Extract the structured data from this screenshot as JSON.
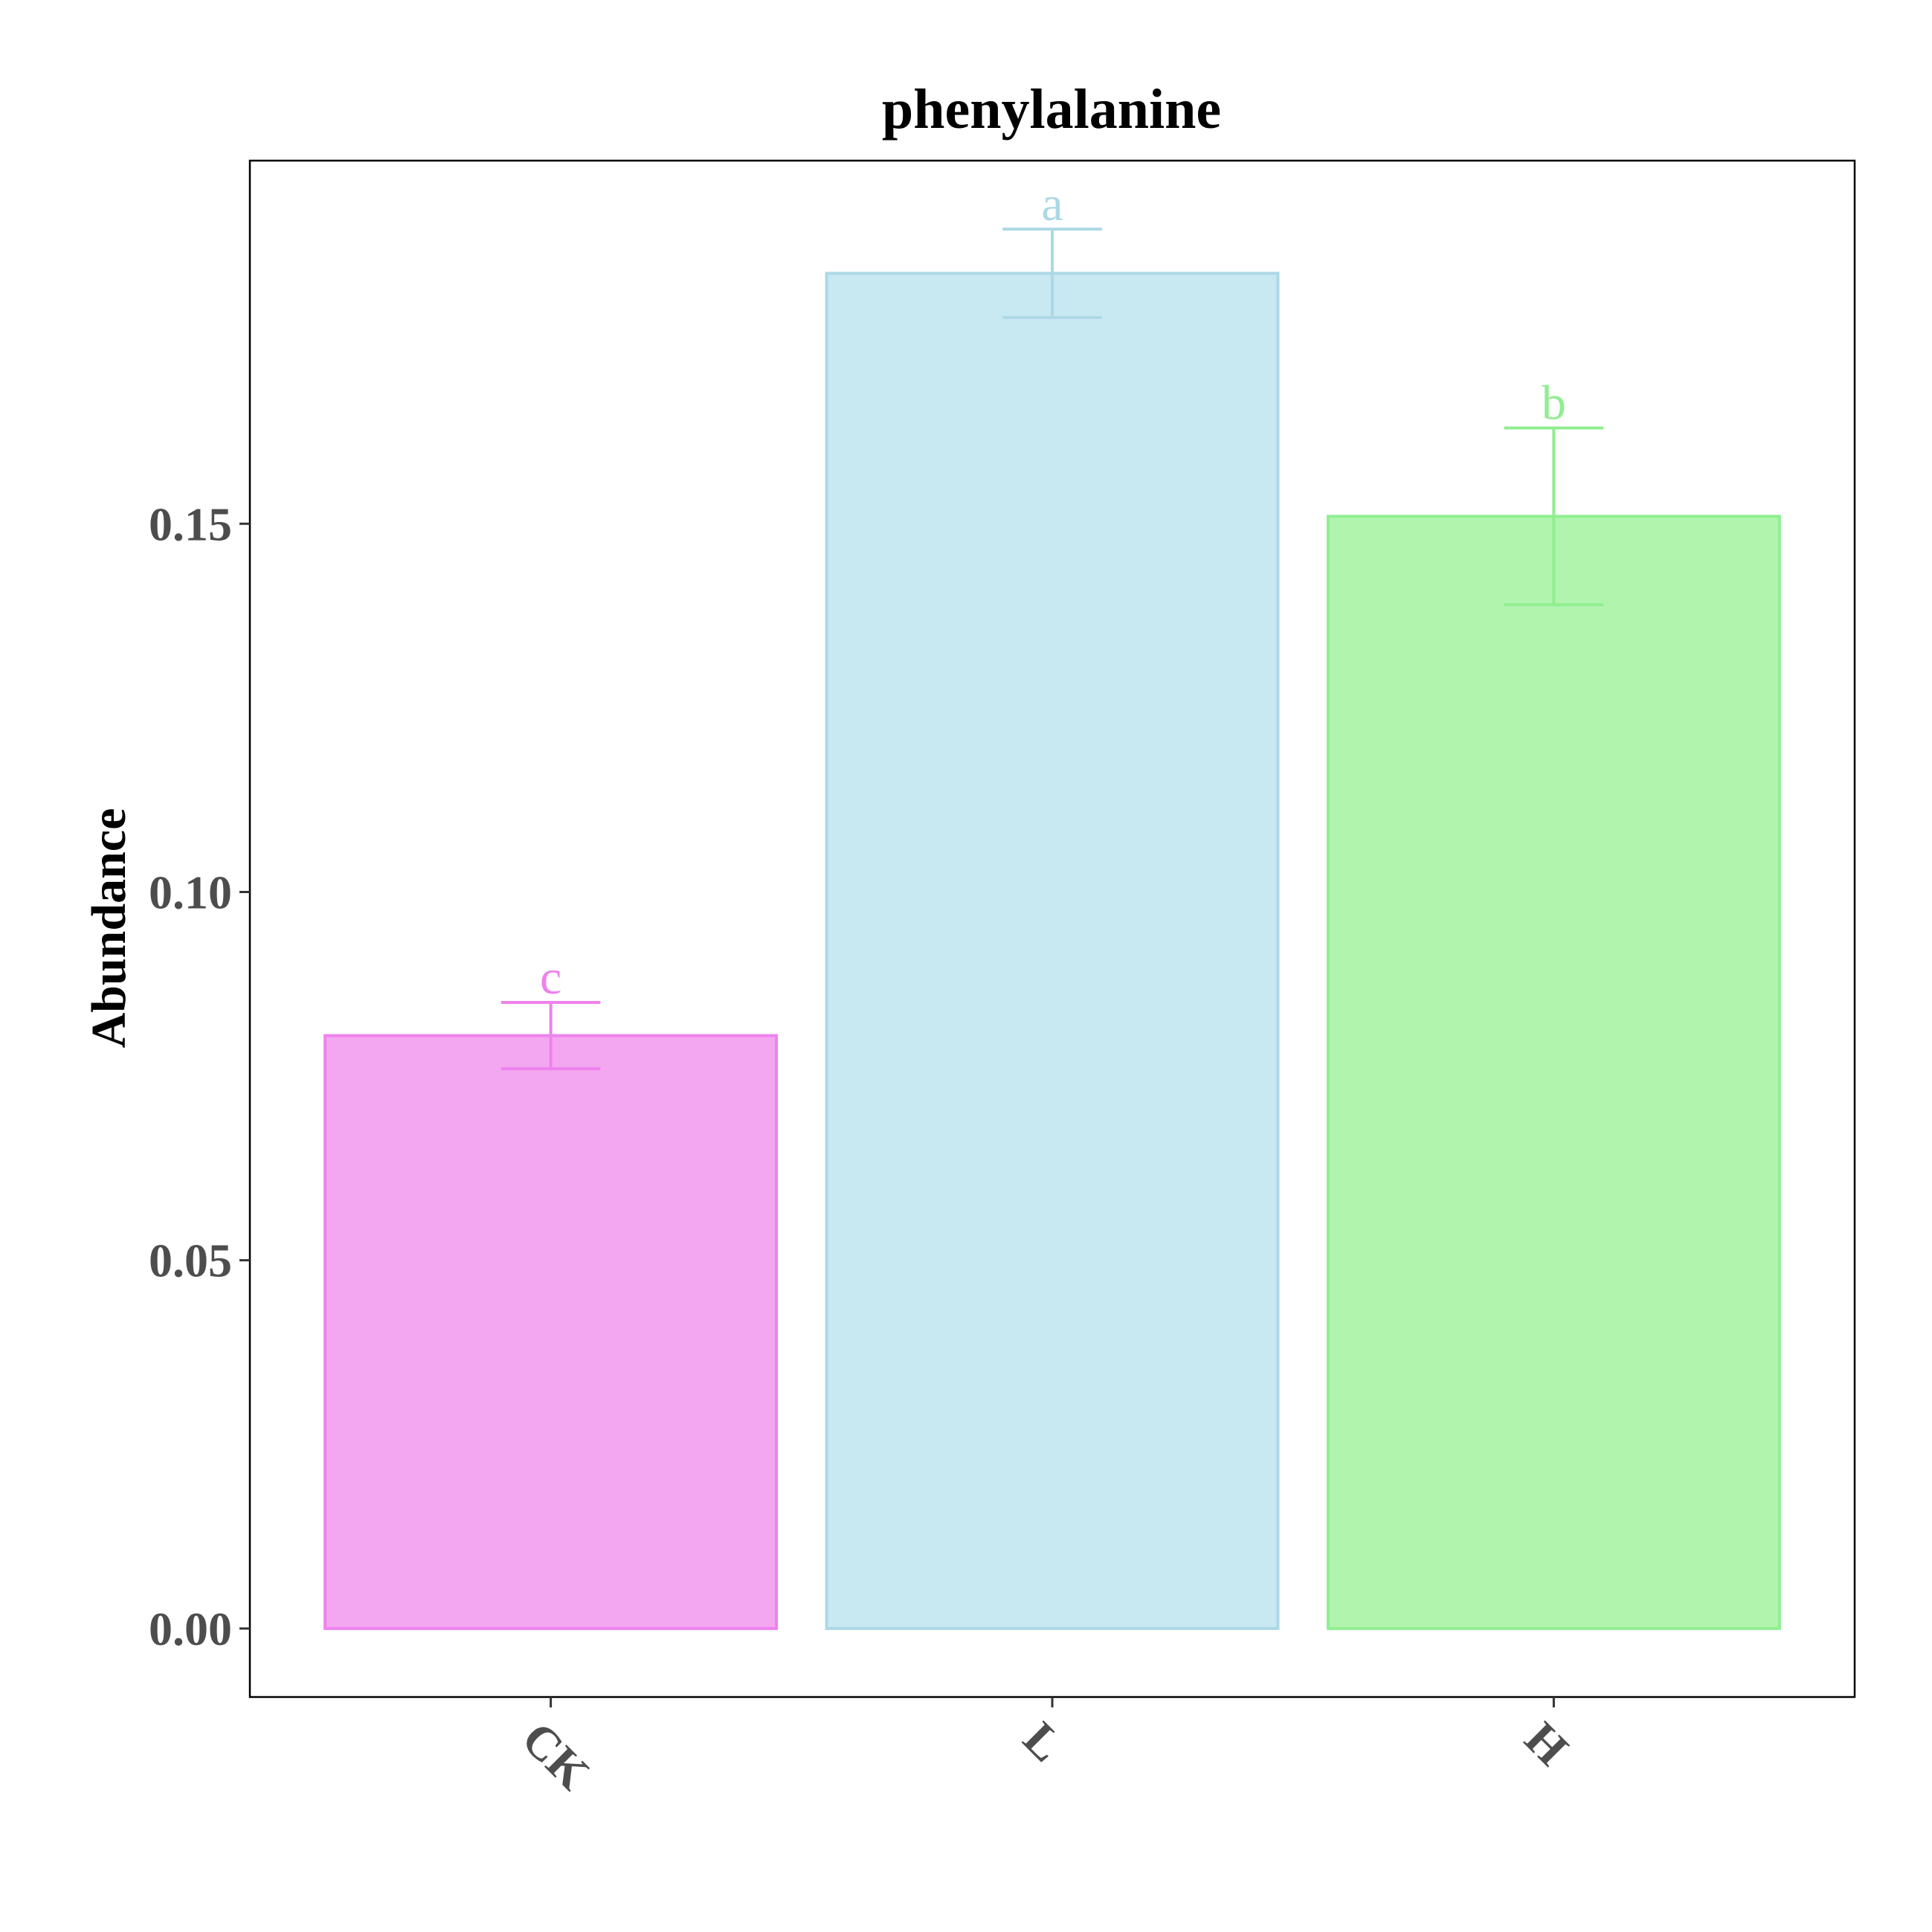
{
  "chart_data": {
    "type": "bar",
    "title": "phenylalanine",
    "xlabel": "",
    "ylabel": "Abundance",
    "categories": [
      "CK",
      "L",
      "H"
    ],
    "values": [
      0.0805,
      0.184,
      0.151
    ],
    "errors": [
      0.0045,
      0.006,
      0.012
    ],
    "significance": [
      "c",
      "a",
      "b"
    ],
    "colors": {
      "fill": [
        "#f4a7f1",
        "#c8e8f2",
        "#b0f4ae"
      ],
      "stroke": [
        "#ee82ee",
        "#add8e6",
        "#90ee90"
      ]
    },
    "ylim": [
      -0.0093,
      0.1993
    ],
    "yticks": [
      0.0,
      0.05,
      0.1,
      0.15
    ],
    "ytick_labels": [
      "0.00",
      "0.05",
      "0.10",
      "0.15"
    ],
    "grid": false,
    "legend": "none"
  }
}
